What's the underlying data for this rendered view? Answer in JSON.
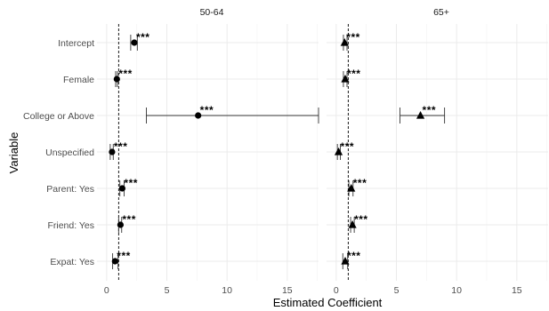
{
  "chart_data": {
    "type": "forest",
    "xlabel": "Estimated Coefficient",
    "ylabel": "Variable",
    "xlim": [
      -0.8,
      17.6
    ],
    "xticks": [
      0,
      5,
      10,
      15
    ],
    "reference_line": 1,
    "variables": [
      "Intercept",
      "Female",
      "College or Above",
      "Unspecified",
      "Parent: Yes",
      "Friend: Yes",
      "Expat: Yes"
    ],
    "panels": [
      {
        "title": "50-64",
        "marker": "circle",
        "estimates": [
          2.3,
          0.85,
          7.6,
          0.45,
          1.3,
          1.15,
          0.7
        ],
        "ci_low": [
          2.0,
          0.75,
          3.3,
          0.3,
          1.1,
          1.0,
          0.5
        ],
        "ci_high": [
          2.55,
          0.9,
          17.6,
          0.55,
          1.45,
          1.25,
          0.95
        ],
        "significance": [
          "***",
          "***",
          "***",
          "***",
          "***",
          "***",
          "***"
        ]
      },
      {
        "title": "65+",
        "marker": "triangle",
        "estimates": [
          0.7,
          0.75,
          7.0,
          0.2,
          1.25,
          1.35,
          0.75
        ],
        "ci_low": [
          0.6,
          0.6,
          5.3,
          0.1,
          1.05,
          1.2,
          0.55
        ],
        "ci_high": [
          0.9,
          0.9,
          9.0,
          0.35,
          1.4,
          1.5,
          0.95
        ],
        "significance": [
          "***",
          "***",
          "***",
          "***",
          "***",
          "***",
          "***"
        ]
      }
    ]
  }
}
